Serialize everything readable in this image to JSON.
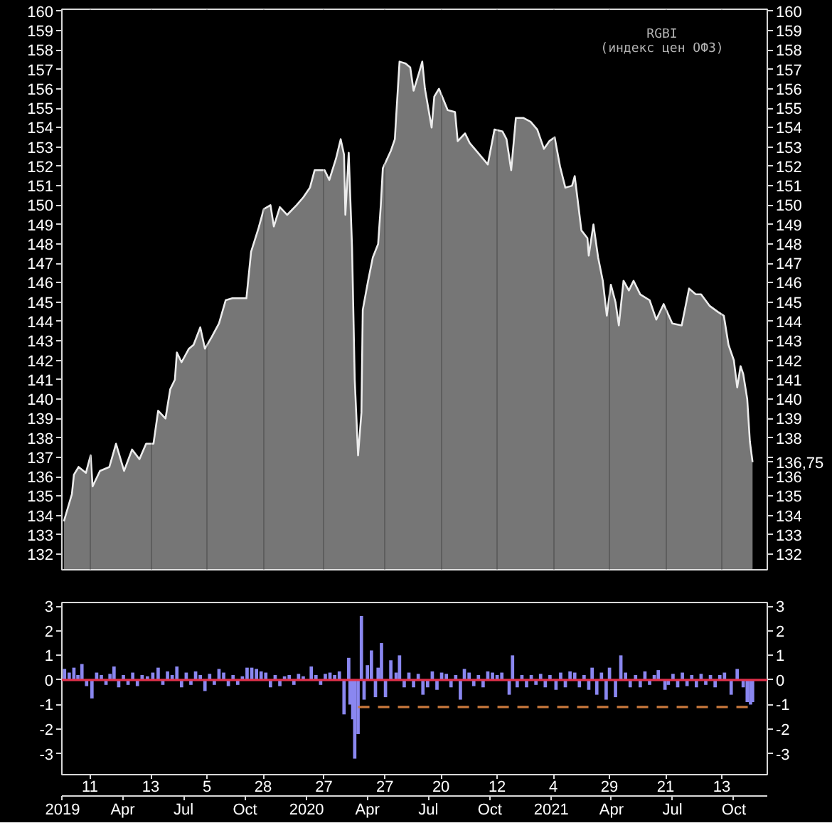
{
  "chart_data": [
    {
      "type": "area",
      "title": "RGBI",
      "subtitle": "(индекс цен ОФЗ)",
      "color": "#ececec",
      "x": [
        "2019-01-03",
        "2019-01-09",
        "2019-01-15",
        "2019-01-18",
        "2019-01-25",
        "2019-02-05",
        "2019-02-12",
        "2019-02-15",
        "2019-02-26",
        "2019-03-12",
        "2019-03-22",
        "2019-04-03",
        "2019-04-15",
        "2019-04-26",
        "2019-05-06",
        "2019-05-17",
        "2019-05-24",
        "2019-06-04",
        "2019-06-11",
        "2019-06-18",
        "2019-06-21",
        "2019-06-28",
        "2019-07-09",
        "2019-07-16",
        "2019-07-26",
        "2019-08-02",
        "2019-08-12",
        "2019-08-23",
        "2019-09-02",
        "2019-09-12",
        "2019-10-03",
        "2019-10-10",
        "2019-10-21",
        "2019-10-29",
        "2019-11-08",
        "2019-11-13",
        "2019-11-22",
        "2019-12-03",
        "2019-12-17",
        "2019-12-27",
        "2020-01-06",
        "2020-01-13",
        "2020-01-28",
        "2020-02-04",
        "2020-02-14",
        "2020-02-21",
        "2020-02-26",
        "2020-02-28",
        "2020-03-04",
        "2020-03-09",
        "2020-03-13",
        "2020-03-18",
        "2020-03-23",
        "2020-03-25",
        "2020-04-02",
        "2020-04-09",
        "2020-04-17",
        "2020-04-21",
        "2020-04-24",
        "2020-05-06",
        "2020-05-12",
        "2020-05-14",
        "2020-05-19",
        "2020-05-28",
        "2020-06-04",
        "2020-06-09",
        "2020-06-17",
        "2020-06-22",
        "2020-06-26",
        "2020-07-06",
        "2020-07-10",
        "2020-07-17",
        "2020-07-30",
        "2020-08-10",
        "2020-08-14",
        "2020-08-25",
        "2020-09-01",
        "2020-09-11",
        "2020-09-28",
        "2020-10-08",
        "2020-10-20",
        "2020-10-26",
        "2020-11-02",
        "2020-11-09",
        "2020-11-20",
        "2020-12-01",
        "2020-12-11",
        "2020-12-21",
        "2020-12-29",
        "2021-01-06",
        "2021-01-14",
        "2021-01-22",
        "2021-02-01",
        "2021-02-05",
        "2021-02-15",
        "2021-02-24",
        "2021-02-26",
        "2021-03-05",
        "2021-03-12",
        "2021-03-19",
        "2021-03-25",
        "2021-03-31",
        "2021-04-07",
        "2021-04-12",
        "2021-04-19",
        "2021-04-27",
        "2021-05-04",
        "2021-05-14",
        "2021-05-28",
        "2021-06-07",
        "2021-06-18",
        "2021-07-01",
        "2021-07-15",
        "2021-07-26",
        "2021-08-05",
        "2021-08-13",
        "2021-08-26",
        "2021-09-07",
        "2021-09-16",
        "2021-09-23",
        "2021-10-01",
        "2021-10-06",
        "2021-10-11",
        "2021-10-15",
        "2021-10-21",
        "2021-10-25",
        "2021-10-29"
      ],
      "values": [
        133.7,
        134.4,
        135.1,
        136.1,
        136.5,
        136.2,
        137.1,
        135.5,
        136.3,
        136.5,
        137.7,
        136.3,
        137.4,
        136.9,
        137.7,
        137.7,
        139.4,
        139.0,
        140.5,
        141.0,
        142.4,
        141.9,
        142.6,
        142.8,
        143.7,
        142.6,
        143.2,
        143.9,
        145.1,
        145.2,
        145.2,
        147.6,
        148.8,
        149.8,
        150.0,
        148.9,
        149.9,
        149.5,
        150.0,
        150.4,
        150.9,
        151.8,
        151.8,
        151.3,
        152.4,
        153.4,
        152.6,
        149.5,
        152.7,
        147.8,
        141.0,
        137.1,
        139.3,
        144.6,
        146.1,
        147.3,
        148.0,
        150.0,
        151.9,
        152.8,
        153.4,
        154.6,
        157.4,
        157.3,
        157.1,
        155.9,
        156.8,
        157.4,
        156.0,
        154.0,
        155.6,
        156.0,
        154.9,
        154.8,
        153.3,
        153.7,
        153.2,
        152.8,
        152.1,
        153.9,
        153.8,
        153.4,
        151.8,
        154.5,
        154.5,
        154.3,
        153.9,
        152.9,
        153.3,
        153.5,
        152.0,
        150.9,
        151.0,
        151.5,
        148.7,
        148.3,
        147.4,
        149.0,
        147.3,
        146.1,
        144.3,
        145.9,
        145.0,
        143.8,
        146.1,
        145.6,
        146.1,
        145.4,
        145.1,
        144.1,
        144.9,
        143.9,
        143.8,
        145.7,
        145.4,
        145.4,
        144.8,
        144.5,
        144.3,
        142.8,
        142.0,
        140.6,
        141.7,
        141.3,
        140.0,
        137.8,
        136.75
      ],
      "xlim": [
        "2018-12-31",
        "2021-11-20"
      ],
      "xticks": [
        "2019-02-11",
        "2019-05-13",
        "2019-08-05",
        "2019-10-28",
        "2020-01-27",
        "2020-04-27",
        "2020-07-20",
        "2020-10-12",
        "2021-01-04",
        "2021-03-29",
        "2021-06-21",
        "2021-09-13"
      ],
      "ylim": [
        131.2,
        160.1
      ],
      "yticks": [
        132,
        133,
        134,
        135,
        136,
        137,
        138,
        139,
        140,
        141,
        142,
        143,
        144,
        145,
        146,
        147,
        148,
        149,
        150,
        151,
        152,
        153,
        154,
        155,
        156,
        157,
        158,
        159,
        160
      ],
      "y2lim": [
        131.2,
        160.1
      ],
      "y2ticks": [
        132,
        133,
        134,
        135,
        136,
        {
          "value": 136.75,
          "label": "136,75"
        },
        {
          "value": 137,
          "label": null
        },
        138,
        139,
        140,
        141,
        142,
        143,
        144,
        145,
        146,
        147,
        148,
        149,
        150,
        151,
        152,
        153,
        154,
        155,
        156,
        157,
        158,
        159,
        160
      ],
      "grid": "x",
      "tick_labels": "y"
    },
    {
      "type": "bar",
      "series": [
        {
          "type": "bar",
          "color": "#8a87f0",
          "x": [
            "2019-01-04",
            "2019-01-11",
            "2019-01-18",
            "2019-01-24",
            "2019-01-30",
            "2019-02-06",
            "2019-02-14",
            "2019-02-21",
            "2019-02-28",
            "2019-03-07",
            "2019-03-13",
            "2019-03-19",
            "2019-03-26",
            "2019-04-02",
            "2019-04-09",
            "2019-04-16",
            "2019-04-23",
            "2019-04-30",
            "2019-05-08",
            "2019-05-16",
            "2019-05-24",
            "2019-05-31",
            "2019-06-07",
            "2019-06-14",
            "2019-06-21",
            "2019-06-28",
            "2019-07-05",
            "2019-07-12",
            "2019-07-19",
            "2019-07-26",
            "2019-08-02",
            "2019-08-09",
            "2019-08-16",
            "2019-08-23",
            "2019-08-30",
            "2019-09-06",
            "2019-09-13",
            "2019-09-20",
            "2019-09-27",
            "2019-10-04",
            "2019-10-11",
            "2019-10-18",
            "2019-10-25",
            "2019-11-01",
            "2019-11-08",
            "2019-11-15",
            "2019-11-22",
            "2019-11-29",
            "2019-12-06",
            "2019-12-13",
            "2019-12-20",
            "2019-12-27",
            "2020-01-08",
            "2020-01-15",
            "2020-01-22",
            "2020-01-29",
            "2020-02-05",
            "2020-02-12",
            "2020-02-19",
            "2020-02-26",
            "2020-03-04",
            "2020-03-06",
            "2020-03-10",
            "2020-03-13",
            "2020-03-18",
            "2020-03-23",
            "2020-03-27",
            "2020-04-01",
            "2020-04-07",
            "2020-04-13",
            "2020-04-17",
            "2020-04-22",
            "2020-04-28",
            "2020-05-06",
            "2020-05-14",
            "2020-05-19",
            "2020-05-26",
            "2020-06-02",
            "2020-06-09",
            "2020-06-16",
            "2020-06-23",
            "2020-06-30",
            "2020-07-07",
            "2020-07-14",
            "2020-07-21",
            "2020-07-28",
            "2020-08-04",
            "2020-08-11",
            "2020-08-18",
            "2020-08-24",
            "2020-08-31",
            "2020-09-07",
            "2020-09-14",
            "2020-09-21",
            "2020-09-28",
            "2020-10-05",
            "2020-10-12",
            "2020-10-19",
            "2020-10-30",
            "2020-11-04",
            "2020-11-11",
            "2020-11-18",
            "2020-11-25",
            "2020-12-02",
            "2020-12-09",
            "2020-12-16",
            "2020-12-23",
            "2020-12-30",
            "2021-01-08",
            "2021-01-15",
            "2021-01-22",
            "2021-01-29",
            "2021-02-05",
            "2021-02-12",
            "2021-02-19",
            "2021-02-26",
            "2021-03-03",
            "2021-03-10",
            "2021-03-17",
            "2021-03-24",
            "2021-03-29",
            "2021-04-07",
            "2021-04-15",
            "2021-04-22",
            "2021-04-29",
            "2021-05-07",
            "2021-05-14",
            "2021-05-21",
            "2021-05-28",
            "2021-06-04",
            "2021-06-10",
            "2021-06-20",
            "2021-06-25",
            "2021-07-02",
            "2021-07-09",
            "2021-07-16",
            "2021-07-23",
            "2021-07-30",
            "2021-08-06",
            "2021-08-13",
            "2021-08-20",
            "2021-08-27",
            "2021-09-03",
            "2021-09-10",
            "2021-09-17",
            "2021-09-27",
            "2021-10-06",
            "2021-10-15",
            "2021-10-21",
            "2021-10-26",
            "2021-10-29"
          ],
          "values": [
            0.45,
            0.3,
            0.5,
            0.2,
            0.65,
            -0.25,
            -0.75,
            0.3,
            0.2,
            -0.2,
            0.25,
            0.55,
            -0.3,
            0.2,
            -0.2,
            0.3,
            -0.25,
            0.2,
            0.15,
            0.3,
            0.5,
            -0.2,
            0.35,
            0.2,
            0.55,
            -0.3,
            0.3,
            -0.2,
            0.35,
            0.2,
            -0.45,
            0.25,
            -0.2,
            0.45,
            0.3,
            -0.25,
            0.2,
            -0.2,
            0.15,
            0.5,
            0.5,
            0.45,
            0.35,
            0.3,
            -0.3,
            0.2,
            -0.25,
            0.15,
            0.2,
            -0.2,
            0.25,
            0.15,
            0.55,
            0.2,
            -0.2,
            0.25,
            0.3,
            0.2,
            0.35,
            -1.4,
            0.9,
            -1.0,
            -1.6,
            -3.2,
            -2.2,
            2.6,
            -0.8,
            0.6,
            1.2,
            -0.7,
            0.5,
            1.5,
            -0.7,
            0.8,
            0.3,
            1.0,
            -0.3,
            0.3,
            -0.3,
            0.25,
            -0.6,
            -0.3,
            0.35,
            -0.4,
            0.3,
            0.25,
            -0.3,
            0.2,
            -0.8,
            0.45,
            0.3,
            -0.25,
            0.2,
            -0.3,
            0.35,
            0.3,
            0.2,
            0.3,
            -0.6,
            1.0,
            -0.3,
            0.2,
            -0.3,
            0.2,
            -0.2,
            0.25,
            -0.3,
            0.2,
            -0.4,
            0.3,
            -0.3,
            0.35,
            0.3,
            -0.3,
            0.2,
            -0.4,
            0.5,
            -0.6,
            0.3,
            -0.8,
            0.5,
            -0.7,
            1.0,
            0.3,
            -0.3,
            0.2,
            -0.3,
            0.35,
            -0.2,
            0.2,
            0.4,
            -0.4,
            -0.2,
            0.25,
            -0.3,
            0.3,
            -0.25,
            0.2,
            -0.3,
            0.25,
            -0.2,
            0.2,
            -0.3,
            0.2,
            0.3,
            -0.6,
            0.45,
            -0.3,
            -0.9,
            -1.0,
            -0.9
          ]
        },
        {
          "type": "line",
          "color": "#c8783c",
          "line_style": "dashed",
          "x": [
            "2020-03-18",
            "2021-10-22"
          ],
          "values": [
            -1.1,
            -1.1
          ]
        }
      ],
      "xlim": [
        "2018-12-31",
        "2021-11-20"
      ],
      "xticks": [
        {
          "value": "2019-02-11",
          "label": "11"
        },
        {
          "value": "2019-05-13",
          "label": "13"
        },
        {
          "value": "2019-08-05",
          "label": "5"
        },
        {
          "value": "2019-10-28",
          "label": "28"
        },
        {
          "value": "2020-01-27",
          "label": "27"
        },
        {
          "value": "2020-04-27",
          "label": "27"
        },
        {
          "value": "2020-07-20",
          "label": "20"
        },
        {
          "value": "2020-10-12",
          "label": "12"
        },
        {
          "value": "2021-01-04",
          "label": "4"
        },
        {
          "value": "2021-03-29",
          "label": "29"
        },
        {
          "value": "2021-06-21",
          "label": "21"
        },
        {
          "value": "2021-09-13",
          "label": "13"
        }
      ],
      "x2lim": [
        "2018-12-31",
        "2021-11-20"
      ],
      "x2ticks": [
        {
          "value": "2019-01-01",
          "label": "2019"
        },
        {
          "value": "2019-04-01",
          "label": "Apr"
        },
        {
          "value": "2019-07-01",
          "label": "Jul"
        },
        {
          "value": "2019-10-01",
          "label": "Oct"
        },
        {
          "value": "2020-01-01",
          "label": "2020"
        },
        {
          "value": "2020-04-01",
          "label": "Apr"
        },
        {
          "value": "2020-07-01",
          "label": "Jul"
        },
        {
          "value": "2020-10-01",
          "label": "Oct"
        },
        {
          "value": "2021-01-01",
          "label": "2021"
        },
        {
          "value": "2021-04-01",
          "label": "Apr"
        },
        {
          "value": "2021-07-01",
          "label": "Jul"
        },
        {
          "value": "2021-10-01",
          "label": "Oct"
        }
      ],
      "ylim": [
        -3.85,
        3.15
      ],
      "yticks": [
        -3,
        -2,
        -1,
        0,
        1,
        2,
        3
      ],
      "y2lim": [
        -3.85,
        3.15
      ],
      "y2ticks": [
        -3,
        -2,
        -1,
        0,
        1,
        2,
        3
      ],
      "ref_lines": [
        {
          "axis": "y",
          "value": 0,
          "color": "#e0304a"
        }
      ]
    }
  ]
}
